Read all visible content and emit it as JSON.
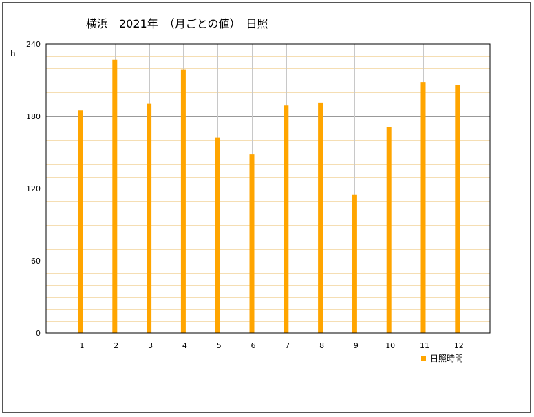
{
  "chart_data": {
    "type": "bar",
    "title": "横浜　2021年　（月ごとの値）　日照",
    "ylabel": "h",
    "xlabel": "",
    "categories": [
      "1",
      "2",
      "3",
      "4",
      "5",
      "6",
      "7",
      "8",
      "9",
      "10",
      "11",
      "12"
    ],
    "series": [
      {
        "name": "日照時間",
        "values": [
          185.0,
          227.0,
          190.5,
          218.5,
          162.5,
          148.5,
          189.0,
          191.5,
          115.0,
          171.0,
          208.5,
          206.0
        ]
      }
    ],
    "ylim": [
      0,
      240
    ],
    "yticks": [
      0,
      60,
      120,
      180,
      240
    ],
    "grid": true,
    "legend": "bottom-right",
    "colors": {
      "bar": "#FFA500",
      "major_grid": "#999999",
      "minor_grid": "#F5DEB3",
      "category_line": "#C8C8C8"
    }
  }
}
